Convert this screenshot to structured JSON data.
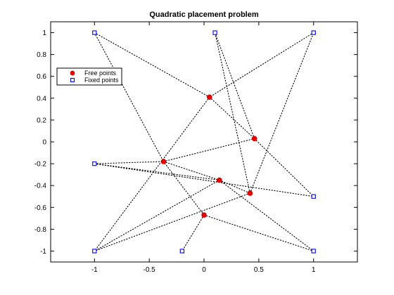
{
  "chart_data": {
    "type": "scatter",
    "title": "Quadratic placement problem",
    "xlabel": "",
    "ylabel": "",
    "xlim": [
      -1.4,
      1.4
    ],
    "ylim": [
      -1.1,
      1.1
    ],
    "xticks": [
      {
        "value": -1,
        "label": "-1"
      },
      {
        "value": -0.5,
        "label": "-0.5"
      },
      {
        "value": 0,
        "label": "0"
      },
      {
        "value": 0.5,
        "label": "0.5"
      },
      {
        "value": 1,
        "label": "1"
      }
    ],
    "yticks": [
      {
        "value": 1,
        "label": "1"
      },
      {
        "value": 0.8,
        "label": "0.8"
      },
      {
        "value": 0.6,
        "label": "0.6"
      },
      {
        "value": 0.4,
        "label": "0.4"
      },
      {
        "value": 0.2,
        "label": "0.2"
      },
      {
        "value": 0,
        "label": "0"
      },
      {
        "value": -0.2,
        "label": "-0.2"
      },
      {
        "value": -0.4,
        "label": "-0.4"
      },
      {
        "value": -0.6,
        "label": "-0.6"
      },
      {
        "value": -0.8,
        "label": "-0.8"
      },
      {
        "value": -1,
        "label": "-1"
      }
    ],
    "grid": false,
    "legend_position": "top-left",
    "series": [
      {
        "name": "Free points",
        "marker": "filled-circle",
        "color": "#e00000",
        "points": [
          {
            "x": 0.05,
            "y": 0.41
          },
          {
            "x": 0.46,
            "y": 0.03
          },
          {
            "x": -0.37,
            "y": -0.18
          },
          {
            "x": 0.14,
            "y": -0.35
          },
          {
            "x": 0.42,
            "y": -0.47
          },
          {
            "x": 0.0,
            "y": -0.67
          }
        ]
      },
      {
        "name": "Fixed points",
        "marker": "open-square",
        "color": "#0000ee",
        "points": [
          {
            "x": -1,
            "y": 1
          },
          {
            "x": 0.1,
            "y": 1
          },
          {
            "x": 1,
            "y": 1
          },
          {
            "x": -1,
            "y": -0.2
          },
          {
            "x": 1,
            "y": -0.5
          },
          {
            "x": -1,
            "y": -1
          },
          {
            "x": -0.2,
            "y": -1
          },
          {
            "x": 1,
            "y": -1
          }
        ]
      }
    ],
    "links": [
      {
        "from": [
          -1,
          1
        ],
        "to": [
          0.05,
          0.41
        ]
      },
      {
        "from": [
          1,
          1
        ],
        "to": [
          0.05,
          0.41
        ]
      },
      {
        "from": [
          0.05,
          0.41
        ],
        "to": [
          -1,
          -1
        ]
      },
      {
        "from": [
          0.1,
          1
        ],
        "to": [
          0.46,
          0.03
        ]
      },
      {
        "from": [
          0.46,
          0.03
        ],
        "to": [
          1,
          -0.5
        ]
      },
      {
        "from": [
          0.05,
          0.41
        ],
        "to": [
          0.46,
          0.03
        ]
      },
      {
        "from": [
          -1,
          1
        ],
        "to": [
          -0.37,
          -0.18
        ]
      },
      {
        "from": [
          -0.37,
          -0.18
        ],
        "to": [
          0.46,
          0.03
        ]
      },
      {
        "from": [
          -1,
          -0.2
        ],
        "to": [
          -0.37,
          -0.18
        ]
      },
      {
        "from": [
          -1,
          -0.2
        ],
        "to": [
          0.14,
          -0.35
        ]
      },
      {
        "from": [
          -1,
          -0.2
        ],
        "to": [
          1,
          -0.5
        ]
      },
      {
        "from": [
          -0.37,
          -0.18
        ],
        "to": [
          0.14,
          -0.35
        ]
      },
      {
        "from": [
          0.14,
          -0.35
        ],
        "to": [
          0.42,
          -0.47
        ]
      },
      {
        "from": [
          0.14,
          -0.35
        ],
        "to": [
          -1,
          -1
        ]
      },
      {
        "from": [
          0.14,
          -0.35
        ],
        "to": [
          1,
          -1
        ]
      },
      {
        "from": [
          0.42,
          -0.47
        ],
        "to": [
          0.1,
          1
        ]
      },
      {
        "from": [
          0.42,
          -0.47
        ],
        "to": [
          1,
          1
        ]
      },
      {
        "from": [
          0.42,
          -0.47
        ],
        "to": [
          -1,
          -1
        ]
      },
      {
        "from": [
          0.0,
          -0.67
        ],
        "to": [
          -0.37,
          -0.18
        ]
      },
      {
        "from": [
          0.0,
          -0.67
        ],
        "to": [
          -0.2,
          -1
        ]
      },
      {
        "from": [
          0.0,
          -0.67
        ],
        "to": [
          1,
          -1
        ]
      }
    ]
  }
}
